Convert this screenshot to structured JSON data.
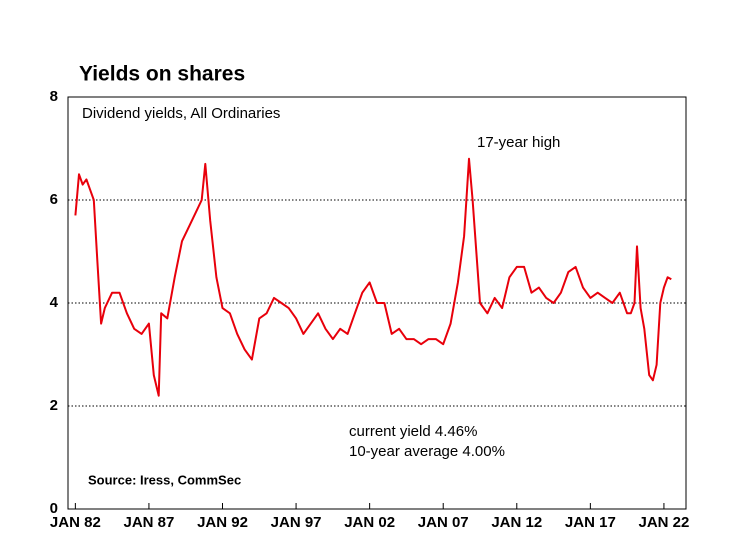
{
  "chart_data": {
    "type": "line",
    "title": "Yields on shares",
    "subtitle": "Dividend yields, All Ordinaries",
    "annotations": [
      "17-year high",
      "current yield 4.46%",
      "10-year average 4.00%"
    ],
    "source": "Source: Iress, CommSec",
    "x": [
      "1982-01",
      "1982-04",
      "1982-07",
      "1982-10",
      "1983-01",
      "1983-04",
      "1983-07",
      "1983-10",
      "1984-01",
      "1984-07",
      "1985-01",
      "1985-07",
      "1986-01",
      "1986-07",
      "1987-01",
      "1987-05",
      "1987-09",
      "1987-11",
      "1988-04",
      "1988-10",
      "1989-04",
      "1989-10",
      "1990-04",
      "1990-08",
      "1990-11",
      "1991-03",
      "1991-08",
      "1992-01",
      "1992-07",
      "1993-01",
      "1993-07",
      "1994-01",
      "1994-07",
      "1995-01",
      "1995-07",
      "1996-01",
      "1996-07",
      "1997-01",
      "1997-07",
      "1998-01",
      "1998-07",
      "1999-01",
      "1999-07",
      "2000-01",
      "2000-07",
      "2001-01",
      "2001-07",
      "2002-01",
      "2002-07",
      "2003-01",
      "2003-07",
      "2004-01",
      "2004-07",
      "2005-01",
      "2005-07",
      "2006-01",
      "2006-07",
      "2007-01",
      "2007-07",
      "2008-01",
      "2008-06",
      "2008-10",
      "2009-01",
      "2009-04",
      "2009-07",
      "2010-01",
      "2010-07",
      "2011-01",
      "2011-07",
      "2012-01",
      "2012-07",
      "2013-01",
      "2013-07",
      "2014-01",
      "2014-07",
      "2015-01",
      "2015-07",
      "2016-01",
      "2016-07",
      "2017-01",
      "2017-07",
      "2018-01",
      "2018-07",
      "2019-01",
      "2019-07",
      "2019-10",
      "2020-01",
      "2020-03",
      "2020-06",
      "2020-09",
      "2021-01",
      "2021-04",
      "2021-07",
      "2021-10",
      "2022-01",
      "2022-04",
      "2022-07"
    ],
    "series": [
      {
        "name": "Dividend yield",
        "color": "#e8000b",
        "values": [
          5.7,
          6.5,
          6.3,
          6.4,
          6.2,
          6.0,
          4.8,
          3.6,
          3.9,
          4.2,
          4.2,
          3.8,
          3.5,
          3.4,
          3.6,
          2.6,
          2.2,
          3.8,
          3.7,
          4.5,
          5.2,
          5.5,
          5.8,
          6.0,
          6.7,
          5.6,
          4.5,
          3.9,
          3.8,
          3.4,
          3.1,
          2.9,
          3.7,
          3.8,
          4.1,
          4.0,
          3.9,
          3.7,
          3.4,
          3.6,
          3.8,
          3.5,
          3.3,
          3.5,
          3.4,
          3.8,
          4.2,
          4.4,
          4.0,
          4.0,
          3.4,
          3.5,
          3.3,
          3.3,
          3.2,
          3.3,
          3.3,
          3.2,
          3.6,
          4.4,
          5.3,
          6.8,
          6.0,
          5.0,
          4.0,
          3.8,
          4.1,
          3.9,
          4.5,
          4.7,
          4.7,
          4.2,
          4.3,
          4.1,
          4.0,
          4.2,
          4.6,
          4.7,
          4.3,
          4.1,
          4.2,
          4.1,
          4.0,
          4.2,
          3.8,
          3.8,
          4.0,
          5.1,
          3.9,
          3.5,
          2.6,
          2.5,
          2.8,
          4.0,
          4.3,
          4.5,
          4.46
        ]
      }
    ],
    "xlim": [
      "1981-07",
      "2023-07"
    ],
    "xticks": [
      {
        "value": "1982-01",
        "label": "JAN 82"
      },
      {
        "value": "1987-01",
        "label": "JAN 87"
      },
      {
        "value": "1992-01",
        "label": "JAN 92"
      },
      {
        "value": "1997-01",
        "label": "JAN 97"
      },
      {
        "value": "2002-01",
        "label": "JAN 02"
      },
      {
        "value": "2007-01",
        "label": "JAN 07"
      },
      {
        "value": "2012-01",
        "label": "JAN 12"
      },
      {
        "value": "2017-01",
        "label": "JAN 17"
      },
      {
        "value": "2022-01",
        "label": "JAN 22"
      }
    ],
    "ylim": [
      0,
      8
    ],
    "yticks": [
      0,
      2,
      4,
      6,
      8
    ],
    "grid": true
  }
}
